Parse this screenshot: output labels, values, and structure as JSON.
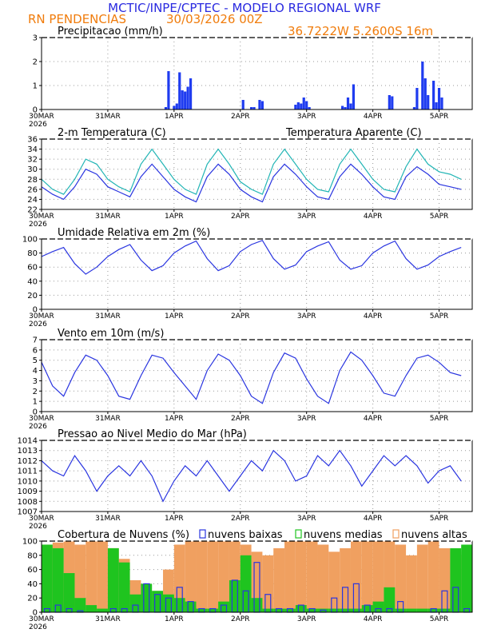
{
  "header": {
    "title": "MCTIC/INPE/CPTEC - MODELO REGIONAL WRF",
    "location": "RN PENDENCIAS",
    "run": "30/03/2026 00Z",
    "coords": "36.7222W 5.2600S 16m",
    "title_color": "#2a2ae0",
    "orange": "#f07c0c"
  },
  "dates": {
    "labels": [
      "30MAR",
      "31MAR",
      "1APR",
      "2APR",
      "3APR",
      "4APR",
      "5APR"
    ],
    "year": "2026"
  },
  "chart_data": [
    {
      "id": "precip",
      "type": "bar",
      "title": "Precipitacao (mm/h)",
      "ylim": [
        0,
        3
      ],
      "yticks": [
        "0",
        "1",
        "2",
        "3"
      ],
      "color": "#1f3cf0",
      "x_hours": [
        45,
        46,
        48,
        49,
        50,
        51,
        52,
        53,
        54,
        73,
        76,
        77,
        79,
        80,
        92,
        93,
        94,
        95,
        96,
        97,
        109,
        110,
        111,
        112,
        113,
        126,
        127,
        135,
        136,
        138,
        139,
        140,
        142,
        143,
        144,
        145
      ],
      "values": [
        0.1,
        1.6,
        0.15,
        0.25,
        1.55,
        0.8,
        0.75,
        0.95,
        1.3,
        0.4,
        0.1,
        0.1,
        0.4,
        0.35,
        0.2,
        0.3,
        0.25,
        0.5,
        0.35,
        0.1,
        0.15,
        0.1,
        0.5,
        0.25,
        1.05,
        0.6,
        0.55,
        0.1,
        0.9,
        2.0,
        1.3,
        0.6,
        1.2,
        0.3,
        0.9,
        0.5
      ]
    },
    {
      "id": "temp",
      "type": "line",
      "title": "2-m Temperatura (C)",
      "ylim": [
        22,
        36
      ],
      "yticks": [
        "22",
        "24",
        "26",
        "28",
        "30",
        "32",
        "34",
        "36"
      ],
      "series": [
        {
          "name": "2-m Temperatura (C)",
          "color": "#2a35e0",
          "x_hours": [
            0,
            4,
            8,
            12,
            16,
            20,
            24,
            28,
            32,
            36,
            40,
            44,
            48,
            52,
            56,
            60,
            64,
            68,
            72,
            76,
            80,
            84,
            88,
            92,
            96,
            100,
            104,
            108,
            112,
            116,
            120,
            124,
            128,
            132,
            136,
            140,
            144,
            148,
            152
          ],
          "values": [
            26.5,
            25,
            24,
            26.5,
            30,
            29,
            26.5,
            25.5,
            24.5,
            28.5,
            31,
            28.5,
            26,
            24.5,
            23.5,
            28.5,
            31,
            29,
            26,
            24.5,
            23.5,
            28.5,
            31,
            29,
            26.5,
            24.5,
            24,
            28.5,
            31,
            29,
            26.5,
            24.5,
            24,
            28.5,
            30.5,
            29,
            27,
            26.5,
            26
          ]
        },
        {
          "name": "Temperatura Aparente (C)",
          "color": "#22b5b5",
          "x_hours": [
            0,
            4,
            8,
            12,
            16,
            20,
            24,
            28,
            32,
            36,
            40,
            44,
            48,
            52,
            56,
            60,
            64,
            68,
            72,
            76,
            80,
            84,
            88,
            92,
            96,
            100,
            104,
            108,
            112,
            116,
            120,
            124,
            128,
            132,
            136,
            140,
            144,
            148,
            152
          ],
          "values": [
            28,
            26,
            25,
            28,
            32,
            31,
            28,
            26.5,
            25.5,
            31,
            34,
            31,
            28,
            26,
            25,
            31,
            34,
            31,
            27.5,
            26,
            25,
            31,
            34,
            31,
            28,
            26,
            25.5,
            31,
            34,
            31,
            28,
            26,
            25.5,
            30.5,
            34,
            31,
            29.5,
            29,
            28
          ]
        }
      ]
    },
    {
      "id": "rh",
      "type": "line",
      "title": "Umidade Relativa em 2m (%)",
      "ylim": [
        0,
        100
      ],
      "yticks": [
        "0",
        "20",
        "40",
        "60",
        "80",
        "100"
      ],
      "series": [
        {
          "name": "Umidade Relativa",
          "color": "#2a35e0",
          "x_hours": [
            0,
            4,
            8,
            12,
            16,
            20,
            24,
            28,
            32,
            36,
            40,
            44,
            48,
            52,
            56,
            60,
            64,
            68,
            72,
            76,
            80,
            84,
            88,
            92,
            96,
            100,
            104,
            108,
            112,
            116,
            120,
            124,
            128,
            132,
            136,
            140,
            144,
            148,
            152
          ],
          "values": [
            75,
            82,
            88,
            65,
            50,
            60,
            75,
            85,
            92,
            70,
            55,
            62,
            80,
            90,
            97,
            72,
            55,
            62,
            82,
            92,
            98,
            72,
            57,
            63,
            82,
            90,
            96,
            70,
            57,
            62,
            80,
            90,
            97,
            72,
            57,
            63,
            75,
            82,
            88
          ]
        }
      ]
    },
    {
      "id": "wind",
      "type": "line",
      "title": "Vento em 10m (m/s)",
      "ylim": [
        0,
        7
      ],
      "yticks": [
        "0",
        "1",
        "2",
        "3",
        "4",
        "5",
        "6",
        "7"
      ],
      "series": [
        {
          "name": "Vento em 10m (m/s)",
          "color": "#2a35e0",
          "x_hours": [
            0,
            4,
            8,
            12,
            16,
            20,
            24,
            28,
            32,
            36,
            40,
            44,
            48,
            52,
            56,
            60,
            64,
            68,
            72,
            76,
            80,
            84,
            88,
            92,
            96,
            100,
            104,
            108,
            112,
            116,
            120,
            124,
            128,
            132,
            136,
            140,
            144,
            148,
            152
          ],
          "values": [
            4.8,
            2.5,
            1.5,
            3.8,
            5.5,
            5,
            3.5,
            1.5,
            1.2,
            3.5,
            5.5,
            5.2,
            3.8,
            2.5,
            1.2,
            4,
            5.6,
            5,
            3.5,
            1.5,
            0.8,
            3.8,
            5.7,
            5.2,
            3.2,
            1.5,
            0.8,
            4,
            5.8,
            5,
            3.5,
            1.8,
            1.5,
            3.5,
            5.2,
            5.5,
            4.8,
            3.8,
            3.5
          ]
        }
      ]
    },
    {
      "id": "pres",
      "type": "line",
      "title": "Pressao ao Nivel Medio do Mar (hPa)",
      "ylim": [
        1007,
        1014
      ],
      "yticks": [
        "1007",
        "1008",
        "1009",
        "1010",
        "1011",
        "1012",
        "1013",
        "1014"
      ],
      "series": [
        {
          "name": "Pressao",
          "color": "#2a35e0",
          "x_hours": [
            0,
            4,
            8,
            12,
            16,
            20,
            24,
            28,
            32,
            36,
            40,
            44,
            48,
            52,
            56,
            60,
            64,
            68,
            72,
            76,
            80,
            84,
            88,
            92,
            96,
            100,
            104,
            108,
            112,
            116,
            120,
            124,
            128,
            132,
            136,
            140,
            144,
            148,
            152
          ],
          "values": [
            1012,
            1011,
            1010.5,
            1012.5,
            1011,
            1009,
            1010.5,
            1011.5,
            1010.5,
            1012,
            1010.5,
            1008,
            1010,
            1011.5,
            1010.5,
            1012,
            1010.5,
            1009,
            1010.5,
            1012,
            1011,
            1013,
            1012,
            1010,
            1010.5,
            1012.5,
            1011.5,
            1013,
            1011.5,
            1009.5,
            1011,
            1012.5,
            1011.5,
            1012.5,
            1011.5,
            1009.8,
            1011,
            1011.5,
            1010
          ]
        }
      ]
    },
    {
      "id": "clouds",
      "type": "bar",
      "title": "Cobertura de Nuvens (%)",
      "ylim": [
        0,
        100
      ],
      "yticks": [
        "0",
        "20",
        "40",
        "60",
        "80",
        "100"
      ],
      "legend": [
        {
          "label": "nuvens baixas",
          "color": "#2a35e0"
        },
        {
          "label": "nuvens medias",
          "color": "#1fc41f"
        },
        {
          "label": "nuvens altas",
          "color": "#f0a060"
        }
      ],
      "x_hours": [
        0,
        4,
        8,
        12,
        16,
        20,
        24,
        28,
        32,
        36,
        40,
        44,
        48,
        52,
        56,
        60,
        64,
        68,
        72,
        76,
        80,
        84,
        88,
        92,
        96,
        100,
        104,
        108,
        112,
        116,
        120,
        124,
        128,
        132,
        136,
        140,
        144,
        148,
        152
      ],
      "series": [
        {
          "name": "nuvens altas",
          "values": [
            95,
            98,
            100,
            95,
            100,
            100,
            90,
            75,
            45,
            25,
            30,
            60,
            95,
            100,
            100,
            100,
            100,
            100,
            95,
            85,
            80,
            90,
            100,
            100,
            100,
            95,
            85,
            90,
            100,
            100,
            100,
            100,
            95,
            80,
            95,
            100,
            90,
            85,
            80
          ]
        },
        {
          "name": "nuvens medias",
          "values": [
            95,
            90,
            55,
            20,
            10,
            5,
            90,
            70,
            25,
            40,
            30,
            25,
            20,
            15,
            5,
            5,
            15,
            45,
            80,
            20,
            5,
            5,
            5,
            10,
            5,
            5,
            5,
            5,
            5,
            10,
            15,
            35,
            5,
            5,
            5,
            5,
            5,
            90,
            95
          ]
        },
        {
          "name": "nuvens baixas",
          "values": [
            5,
            10,
            5,
            2,
            0,
            0,
            5,
            5,
            10,
            40,
            25,
            20,
            35,
            15,
            5,
            5,
            10,
            45,
            30,
            70,
            25,
            5,
            5,
            10,
            5,
            3,
            20,
            35,
            40,
            10,
            5,
            5,
            15,
            0,
            0,
            5,
            30,
            35,
            5
          ]
        }
      ]
    }
  ]
}
